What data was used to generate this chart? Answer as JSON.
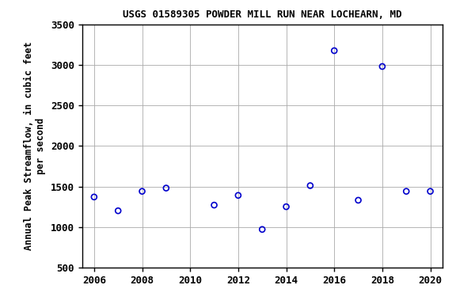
{
  "title": "USGS 01589305 POWDER MILL RUN NEAR LOCHEARN, MD",
  "ylabel_line1": "Annual Peak Streamflow, in cubic feet",
  "ylabel_line2": "per second",
  "xlabel": "",
  "years": [
    2006,
    2007,
    2008,
    2009,
    2011,
    2012,
    2013,
    2014,
    2015,
    2016,
    2017,
    2018,
    2019,
    2020
  ],
  "values": [
    1370,
    1200,
    1440,
    1480,
    1270,
    1390,
    970,
    1250,
    1510,
    3175,
    1330,
    2980,
    1440,
    1440
  ],
  "xlim": [
    2005.5,
    2020.5
  ],
  "ylim": [
    500,
    3500
  ],
  "yticks": [
    500,
    1000,
    1500,
    2000,
    2500,
    3000,
    3500
  ],
  "xticks": [
    2006,
    2008,
    2010,
    2012,
    2014,
    2016,
    2018,
    2020
  ],
  "marker_color": "#0000cc",
  "marker_size": 5,
  "marker_style": "o",
  "grid_color": "#aaaaaa",
  "bg_color": "#ffffff",
  "title_fontsize": 9,
  "label_fontsize": 8.5,
  "tick_fontsize": 9,
  "font_family": "DejaVu Sans Mono"
}
